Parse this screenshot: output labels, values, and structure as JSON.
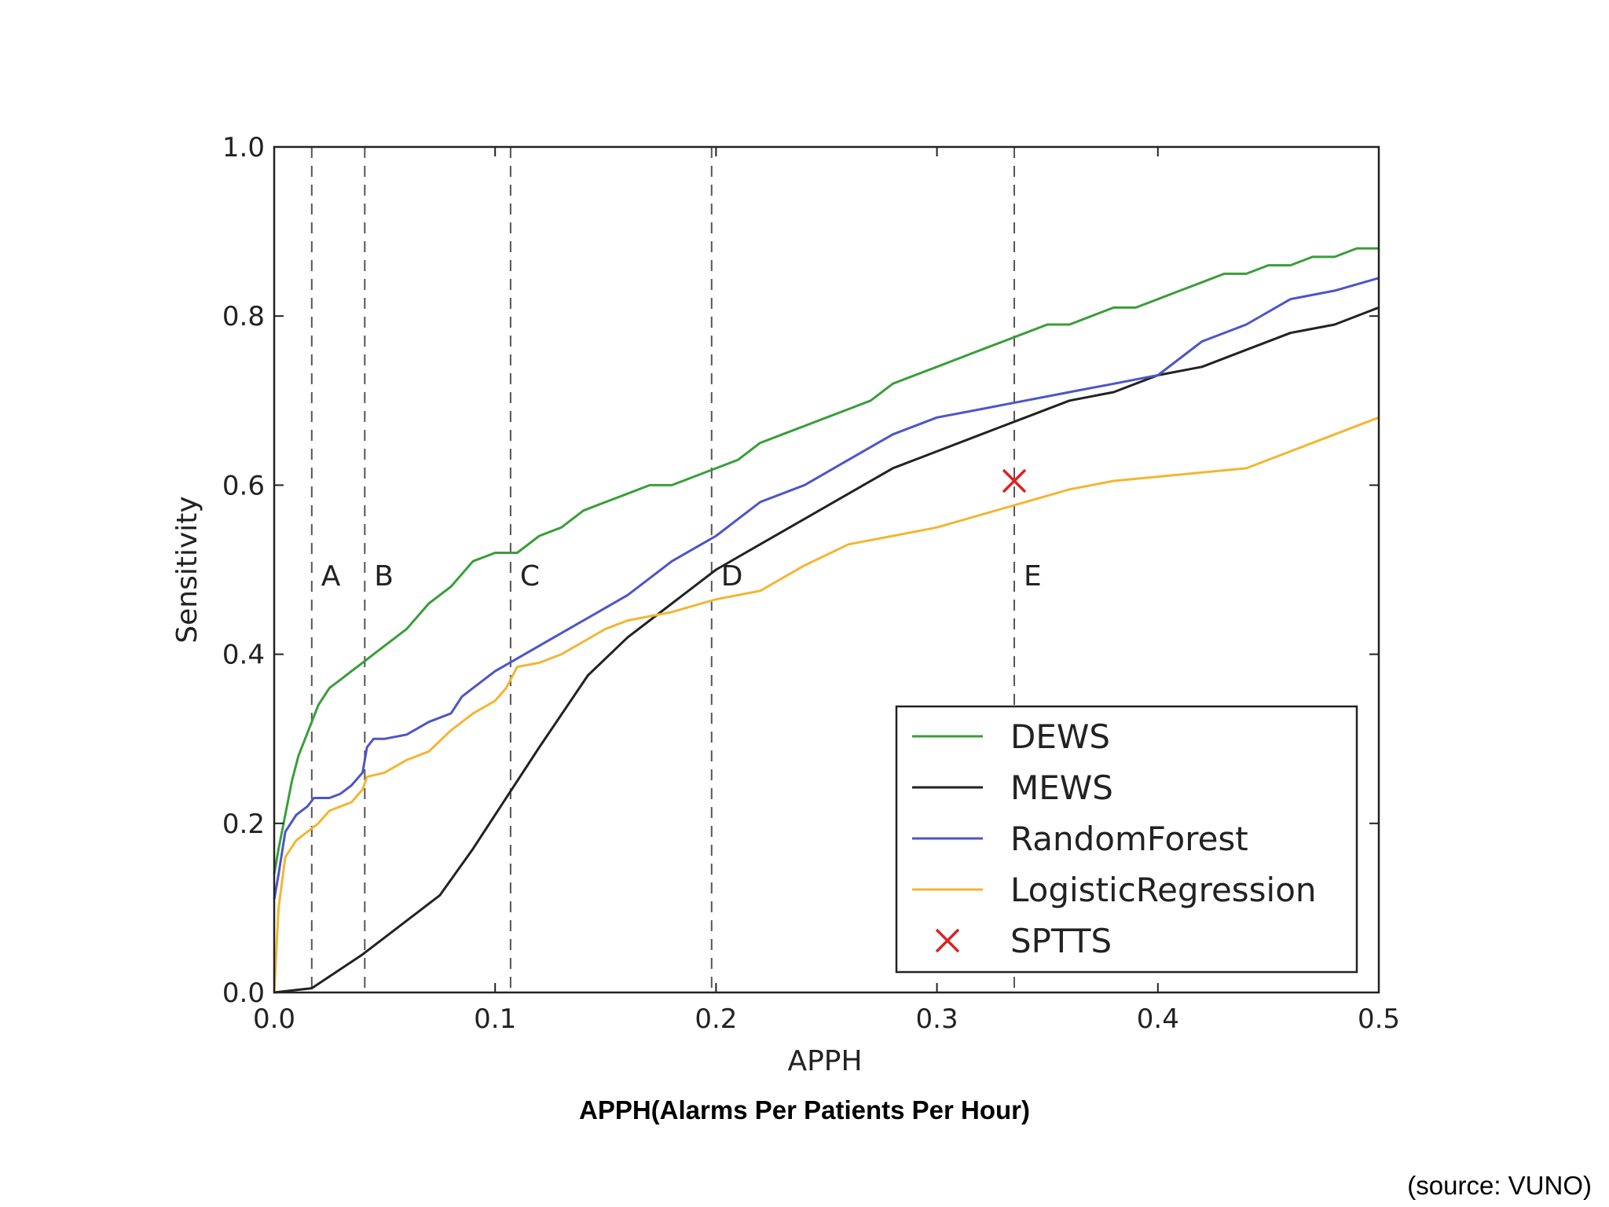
{
  "chart_data": {
    "type": "line",
    "title": "",
    "xlabel": "APPH",
    "ylabel": "Sensitivity",
    "xlim": [
      0.0,
      0.5
    ],
    "ylim": [
      0.0,
      1.0
    ],
    "xticks": [
      "0.0",
      "0.1",
      "0.2",
      "0.3",
      "0.4",
      "0.5"
    ],
    "yticks": [
      "0.0",
      "0.2",
      "0.4",
      "0.6",
      "0.8",
      "1.0"
    ],
    "grid": false,
    "legend_position": "bottom-right",
    "thresholds": [
      {
        "label": "A",
        "x": 0.017
      },
      {
        "label": "B",
        "x": 0.041
      },
      {
        "label": "C",
        "x": 0.107
      },
      {
        "label": "D",
        "x": 0.198
      },
      {
        "label": "E",
        "x": 0.335
      }
    ],
    "series": [
      {
        "name": "DEWS",
        "color": "#3a9e3a",
        "points": [
          [
            0.0,
            0.14
          ],
          [
            0.002,
            0.17
          ],
          [
            0.005,
            0.21
          ],
          [
            0.008,
            0.25
          ],
          [
            0.011,
            0.28
          ],
          [
            0.014,
            0.3
          ],
          [
            0.017,
            0.32
          ],
          [
            0.02,
            0.34
          ],
          [
            0.025,
            0.36
          ],
          [
            0.03,
            0.37
          ],
          [
            0.035,
            0.38
          ],
          [
            0.04,
            0.39
          ],
          [
            0.045,
            0.4
          ],
          [
            0.05,
            0.41
          ],
          [
            0.06,
            0.43
          ],
          [
            0.07,
            0.46
          ],
          [
            0.08,
            0.48
          ],
          [
            0.09,
            0.51
          ],
          [
            0.1,
            0.52
          ],
          [
            0.11,
            0.52
          ],
          [
            0.12,
            0.54
          ],
          [
            0.13,
            0.55
          ],
          [
            0.14,
            0.57
          ],
          [
            0.15,
            0.58
          ],
          [
            0.16,
            0.59
          ],
          [
            0.17,
            0.6
          ],
          [
            0.18,
            0.6
          ],
          [
            0.19,
            0.61
          ],
          [
            0.2,
            0.62
          ],
          [
            0.21,
            0.63
          ],
          [
            0.22,
            0.65
          ],
          [
            0.23,
            0.66
          ],
          [
            0.24,
            0.67
          ],
          [
            0.25,
            0.68
          ],
          [
            0.26,
            0.69
          ],
          [
            0.27,
            0.7
          ],
          [
            0.28,
            0.72
          ],
          [
            0.29,
            0.73
          ],
          [
            0.3,
            0.74
          ],
          [
            0.31,
            0.75
          ],
          [
            0.32,
            0.76
          ],
          [
            0.33,
            0.77
          ],
          [
            0.34,
            0.78
          ],
          [
            0.35,
            0.79
          ],
          [
            0.36,
            0.79
          ],
          [
            0.37,
            0.8
          ],
          [
            0.38,
            0.81
          ],
          [
            0.39,
            0.81
          ],
          [
            0.4,
            0.82
          ],
          [
            0.41,
            0.83
          ],
          [
            0.42,
            0.84
          ],
          [
            0.43,
            0.85
          ],
          [
            0.44,
            0.85
          ],
          [
            0.45,
            0.86
          ],
          [
            0.46,
            0.86
          ],
          [
            0.47,
            0.87
          ],
          [
            0.48,
            0.87
          ],
          [
            0.49,
            0.88
          ],
          [
            0.5,
            0.88
          ]
        ]
      },
      {
        "name": "MEWS",
        "color": "#222222",
        "points": [
          [
            0.0,
            0.0
          ],
          [
            0.017,
            0.005
          ],
          [
            0.04,
            0.045
          ],
          [
            0.075,
            0.115
          ],
          [
            0.09,
            0.17
          ],
          [
            0.1,
            0.21
          ],
          [
            0.12,
            0.29
          ],
          [
            0.142,
            0.375
          ],
          [
            0.16,
            0.42
          ],
          [
            0.18,
            0.46
          ],
          [
            0.2,
            0.5
          ],
          [
            0.22,
            0.53
          ],
          [
            0.24,
            0.56
          ],
          [
            0.26,
            0.59
          ],
          [
            0.28,
            0.62
          ],
          [
            0.3,
            0.64
          ],
          [
            0.32,
            0.66
          ],
          [
            0.34,
            0.68
          ],
          [
            0.36,
            0.7
          ],
          [
            0.38,
            0.71
          ],
          [
            0.4,
            0.73
          ],
          [
            0.42,
            0.74
          ],
          [
            0.44,
            0.76
          ],
          [
            0.46,
            0.78
          ],
          [
            0.48,
            0.79
          ],
          [
            0.5,
            0.81
          ]
        ]
      },
      {
        "name": "RandomForest",
        "color": "#4d55c7",
        "points": [
          [
            0.0,
            0.11
          ],
          [
            0.002,
            0.14
          ],
          [
            0.005,
            0.19
          ],
          [
            0.01,
            0.21
          ],
          [
            0.015,
            0.22
          ],
          [
            0.018,
            0.23
          ],
          [
            0.025,
            0.23
          ],
          [
            0.03,
            0.235
          ],
          [
            0.035,
            0.245
          ],
          [
            0.04,
            0.26
          ],
          [
            0.042,
            0.29
          ],
          [
            0.045,
            0.3
          ],
          [
            0.05,
            0.3
          ],
          [
            0.06,
            0.305
          ],
          [
            0.07,
            0.32
          ],
          [
            0.08,
            0.33
          ],
          [
            0.085,
            0.35
          ],
          [
            0.09,
            0.36
          ],
          [
            0.1,
            0.38
          ],
          [
            0.12,
            0.41
          ],
          [
            0.14,
            0.44
          ],
          [
            0.16,
            0.47
          ],
          [
            0.18,
            0.51
          ],
          [
            0.2,
            0.54
          ],
          [
            0.21,
            0.56
          ],
          [
            0.22,
            0.58
          ],
          [
            0.24,
            0.6
          ],
          [
            0.26,
            0.63
          ],
          [
            0.28,
            0.66
          ],
          [
            0.3,
            0.68
          ],
          [
            0.32,
            0.69
          ],
          [
            0.34,
            0.7
          ],
          [
            0.36,
            0.71
          ],
          [
            0.38,
            0.72
          ],
          [
            0.4,
            0.73
          ],
          [
            0.41,
            0.75
          ],
          [
            0.42,
            0.77
          ],
          [
            0.44,
            0.79
          ],
          [
            0.46,
            0.82
          ],
          [
            0.48,
            0.83
          ],
          [
            0.5,
            0.845
          ]
        ]
      },
      {
        "name": "LogisticRegression",
        "color": "#f2b632",
        "points": [
          [
            0.0,
            0.0
          ],
          [
            0.002,
            0.1
          ],
          [
            0.005,
            0.16
          ],
          [
            0.01,
            0.18
          ],
          [
            0.015,
            0.19
          ],
          [
            0.02,
            0.2
          ],
          [
            0.025,
            0.215
          ],
          [
            0.03,
            0.22
          ],
          [
            0.035,
            0.225
          ],
          [
            0.04,
            0.24
          ],
          [
            0.042,
            0.255
          ],
          [
            0.05,
            0.26
          ],
          [
            0.06,
            0.275
          ],
          [
            0.07,
            0.285
          ],
          [
            0.08,
            0.31
          ],
          [
            0.09,
            0.33
          ],
          [
            0.1,
            0.345
          ],
          [
            0.105,
            0.36
          ],
          [
            0.11,
            0.385
          ],
          [
            0.12,
            0.39
          ],
          [
            0.13,
            0.4
          ],
          [
            0.14,
            0.415
          ],
          [
            0.15,
            0.43
          ],
          [
            0.16,
            0.44
          ],
          [
            0.18,
            0.45
          ],
          [
            0.2,
            0.465
          ],
          [
            0.22,
            0.475
          ],
          [
            0.24,
            0.505
          ],
          [
            0.26,
            0.53
          ],
          [
            0.28,
            0.54
          ],
          [
            0.3,
            0.55
          ],
          [
            0.32,
            0.565
          ],
          [
            0.34,
            0.58
          ],
          [
            0.36,
            0.595
          ],
          [
            0.38,
            0.605
          ],
          [
            0.4,
            0.61
          ],
          [
            0.42,
            0.615
          ],
          [
            0.44,
            0.62
          ],
          [
            0.46,
            0.64
          ],
          [
            0.48,
            0.66
          ],
          [
            0.5,
            0.68
          ]
        ]
      }
    ],
    "markers": [
      {
        "name": "SPTTS",
        "color": "#dd2222",
        "symbol": "x",
        "x": 0.335,
        "y": 0.605
      }
    ]
  },
  "caption": "APPH(Alarms Per Patients Per Hour)",
  "source": "(source: VUNO)"
}
